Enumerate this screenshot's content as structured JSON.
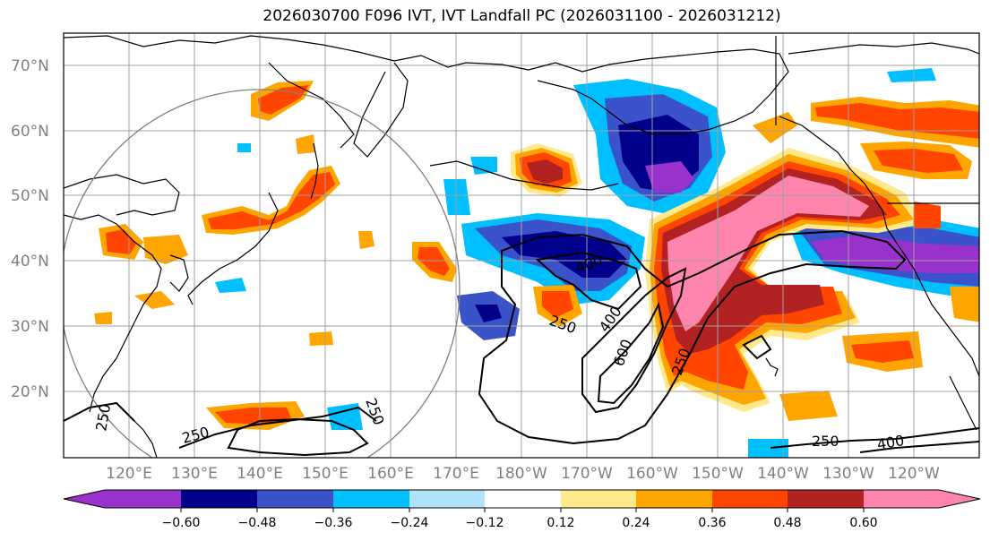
{
  "title": "2026030700 F096 IVT, IVT Landfall PC (2026031100 - 2026031212)",
  "colors": {
    "c_n072": "#9932cc",
    "c_n060": "#00008b",
    "c_n048": "#3a53c8",
    "c_n036": "#00bfff",
    "c_n024": "#aee3fa",
    "c_n012": "#ffffff",
    "c_p012": "#ffe98a",
    "c_p024": "#ffa500",
    "c_p036": "#ff4500",
    "c_p048": "#b22222",
    "c_p060": "#ff85ad",
    "coast": "#000000",
    "grid": "#a0a0a0",
    "circle": "#808080",
    "contour": "#000000"
  },
  "lat_labels": [
    "70°N",
    "60°N",
    "50°N",
    "40°N",
    "30°N",
    "20°N"
  ],
  "lon_labels": [
    "120°E",
    "130°E",
    "140°E",
    "150°E",
    "160°E",
    "170°E",
    "180°W",
    "170°W",
    "160°W",
    "150°W",
    "140°W",
    "130°W",
    "120°W"
  ],
  "colorbar": {
    "ticks": [
      "−0.60",
      "−0.48",
      "−0.36",
      "−0.24",
      "−0.12",
      "0.12",
      "0.24",
      "0.36",
      "0.48",
      "0.60"
    ]
  },
  "contour_labels": [
    "400",
    "250",
    "400",
    "600",
    "250",
    "250",
    "250",
    "250",
    "250",
    "400"
  ]
}
